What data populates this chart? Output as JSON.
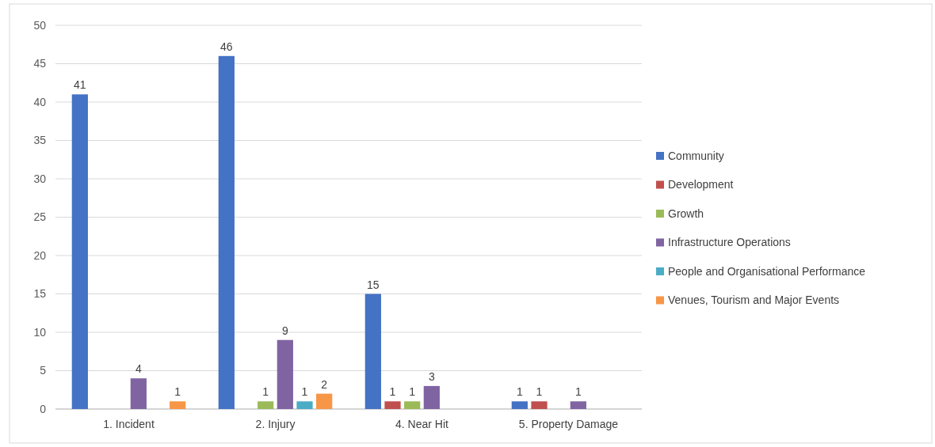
{
  "chart_data": {
    "type": "bar",
    "categories": [
      "1. Incident",
      "2. Injury",
      "4. Near Hit",
      "5. Property Damage"
    ],
    "series": [
      {
        "name": "Community",
        "color": "#4472c4",
        "values": [
          41,
          46,
          15,
          1
        ]
      },
      {
        "name": "Development",
        "color": "#c0504d",
        "values": [
          null,
          null,
          1,
          1
        ]
      },
      {
        "name": "Growth",
        "color": "#9bbb59",
        "values": [
          null,
          1,
          1,
          null
        ]
      },
      {
        "name": "Infrastructure Operations",
        "color": "#8064a2",
        "values": [
          4,
          9,
          3,
          1
        ]
      },
      {
        "name": "People and Organisational Performance",
        "color": "#4bacc6",
        "values": [
          null,
          1,
          null,
          null
        ]
      },
      {
        "name": "Venues, Tourism and Major Events",
        "color": "#f79646",
        "values": [
          1,
          2,
          null,
          null
        ]
      }
    ],
    "ylim": [
      0,
      50
    ],
    "yticks": [
      0,
      5,
      10,
      15,
      20,
      25,
      30,
      35,
      40,
      45,
      50
    ],
    "grid": "y",
    "legend": "right",
    "data_labels": true
  }
}
